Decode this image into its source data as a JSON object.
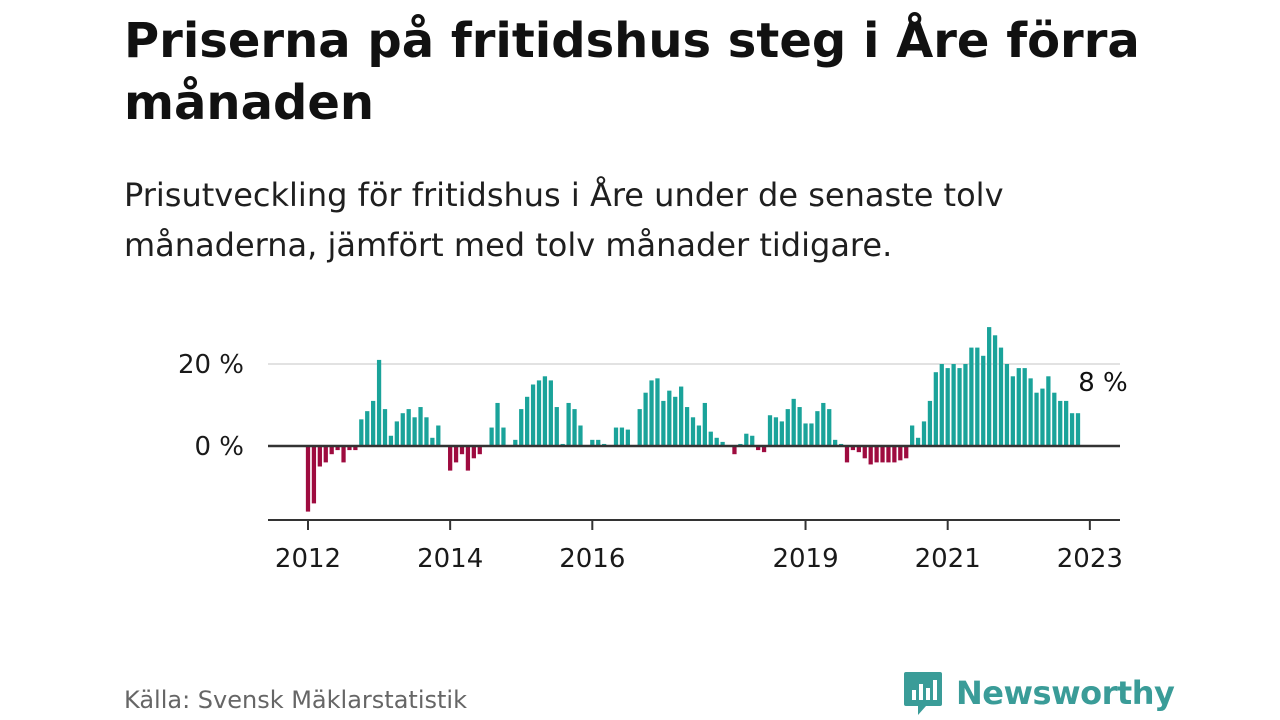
{
  "title": "Priserna på fritidshus steg i Åre förra månaden",
  "subtitle": "Prisutveckling för fritidshus i Åre under de senaste tolv månaderna, jämfört med tolv månader tidigare.",
  "source": "Källa: Svensk Mäklarstatistik",
  "brand": "Newsworthy",
  "colors": {
    "positive": "#1aa39a",
    "negative": "#9e0b3f",
    "text": "#1a1a1a",
    "brand": "#3a9c98"
  },
  "chart_data": {
    "type": "bar",
    "x_start": "2012-01",
    "x_end": "2023-02",
    "xtick_labels": [
      "2012",
      "2014",
      "2016",
      "2019",
      "2021",
      "2023"
    ],
    "ytick_labels": [
      "20 %",
      "0 %"
    ],
    "y_ticks": [
      20,
      0
    ],
    "ylim": [
      -18,
      30
    ],
    "grid": true,
    "last_value_label": "8 %",
    "values": [
      -16,
      -14,
      -5,
      -4,
      -2,
      -1,
      -4,
      -1,
      -1,
      6.5,
      8.5,
      11,
      21,
      9,
      2.5,
      6,
      8,
      9,
      7,
      9.5,
      7,
      2,
      5,
      0,
      -6,
      -4,
      -2,
      -6,
      -3,
      -2,
      0,
      4.5,
      10.5,
      4.5,
      0,
      1.5,
      9,
      12,
      15,
      16,
      17,
      16,
      9.5,
      0.5,
      10.5,
      9,
      5,
      0,
      1.5,
      1.5,
      0.5,
      0,
      4.5,
      4.5,
      4,
      0,
      9,
      13,
      16,
      16.5,
      11,
      13.5,
      12,
      14.5,
      9.5,
      7,
      5,
      10.5,
      3.5,
      2,
      1,
      0,
      -2,
      0.5,
      3,
      2.5,
      -1,
      -1.5,
      7.5,
      7,
      6,
      9,
      11.5,
      9.5,
      5.5,
      5.5,
      8.5,
      10.5,
      9,
      1.5,
      0.5,
      -4,
      -1,
      -1.5,
      -3,
      -4.5,
      -4,
      -4,
      -4,
      -4,
      -3.5,
      -3,
      5,
      2,
      6,
      11,
      18,
      20,
      19,
      20,
      19,
      20,
      24,
      24,
      22,
      29,
      27,
      24,
      20,
      17,
      19,
      19,
      16.5,
      13,
      14,
      17,
      13,
      11,
      11,
      8,
      8
    ]
  }
}
